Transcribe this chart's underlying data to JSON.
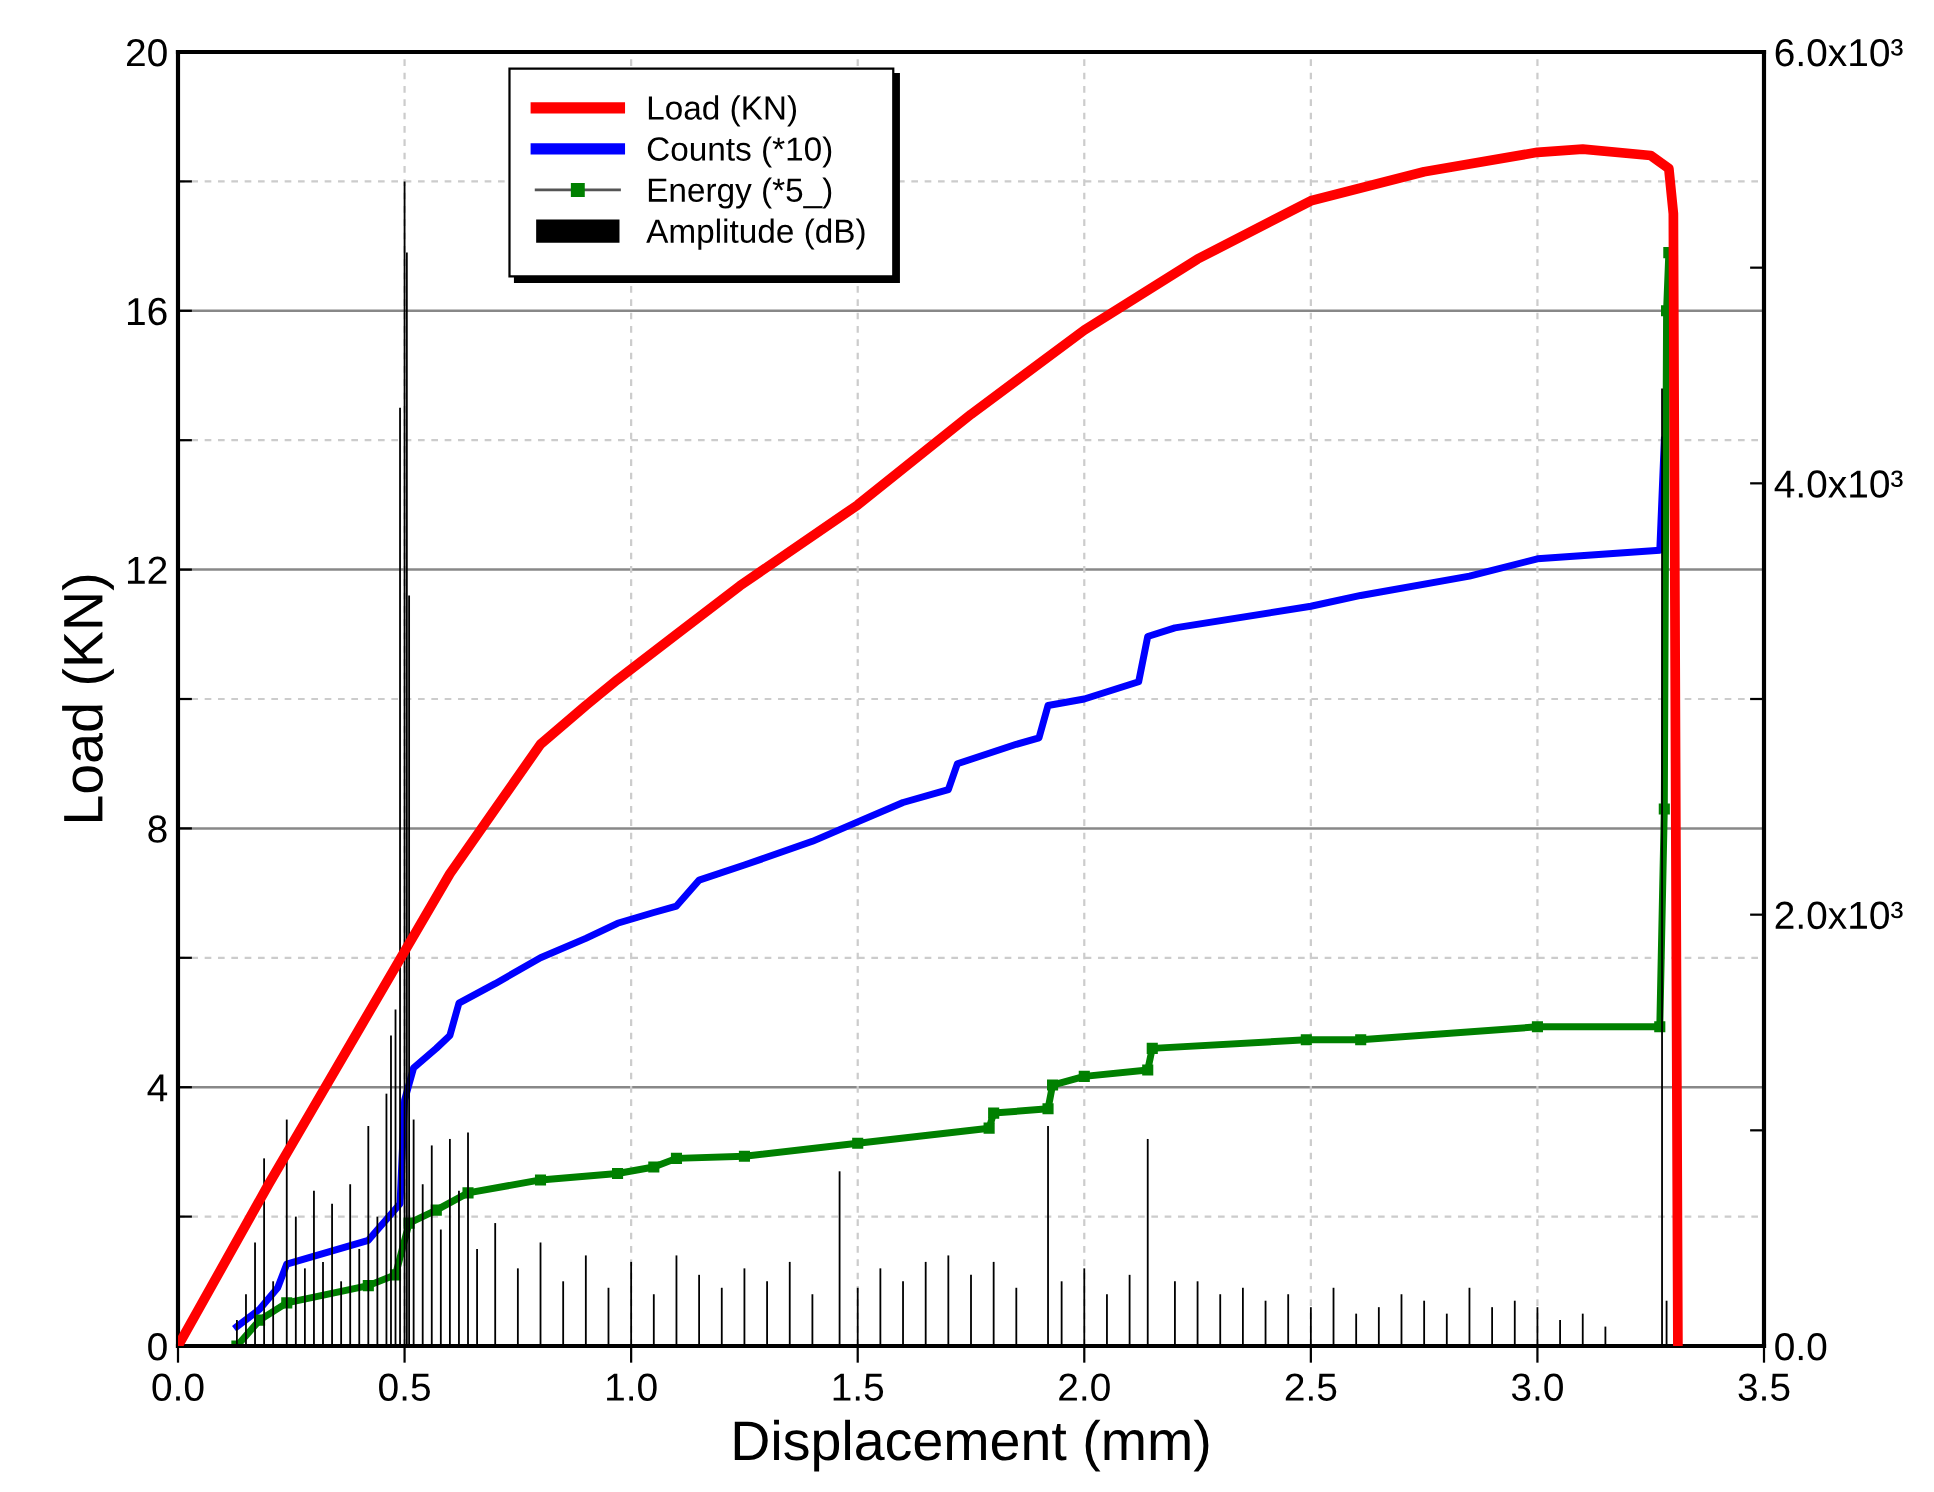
{
  "chart_data": {
    "type": "line",
    "xlabel": "Displacement (mm)",
    "ylabel": "Load (KN)",
    "xlim": [
      0,
      3.5
    ],
    "xticks": [
      {
        "value": 0,
        "label": "0.0"
      },
      {
        "value": 0.5,
        "label": "0.5"
      },
      {
        "value": 1,
        "label": "1.0"
      },
      {
        "value": 1.5,
        "label": "1.5"
      },
      {
        "value": 2,
        "label": "2.0"
      },
      {
        "value": 2.5,
        "label": "2.5"
      },
      {
        "value": 3,
        "label": "3.0"
      },
      {
        "value": 3.5,
        "label": "3.5"
      }
    ],
    "ylim": [
      0,
      20
    ],
    "yticks": [
      0,
      {
        "value": 2,
        "label": null
      },
      4,
      {
        "value": 6,
        "label": null
      },
      8,
      {
        "value": 10,
        "label": null
      },
      12,
      {
        "value": 14,
        "label": null
      },
      16,
      {
        "value": 18,
        "label": null
      },
      20
    ],
    "y2lim": [
      0,
      6000
    ],
    "y2ticks": [
      {
        "value": 0,
        "label": "0.0"
      },
      {
        "value": 1000,
        "label": null
      },
      {
        "value": 2000,
        "label": "2.0x10³"
      },
      {
        "value": 3000,
        "label": null
      },
      {
        "value": 4000,
        "label": "4.0x10³"
      },
      {
        "value": 5000,
        "label": null
      },
      {
        "value": 6000,
        "label": "6.0x10³"
      }
    ],
    "grid": true,
    "legend": "top",
    "series": [
      {
        "name": "Load (KN)",
        "color": "#ff0000",
        "marker": "none",
        "x": [
          0,
          0.1,
          0.2,
          0.3,
          0.4,
          0.5,
          0.6,
          0.7,
          0.8,
          0.9,
          0.97,
          1.1,
          1.24,
          1.5,
          1.75,
          2.0,
          2.25,
          2.5,
          2.75,
          3.0,
          3.1,
          3.25,
          3.29,
          3.3,
          3.31
        ],
        "values": [
          0,
          1.25,
          2.5,
          3.7,
          4.9,
          6.1,
          7.3,
          8.3,
          9.3,
          9.9,
          10.3,
          11.0,
          11.75,
          13.0,
          14.4,
          15.7,
          16.8,
          17.7,
          18.15,
          18.45,
          18.5,
          18.4,
          18.2,
          17.5,
          0
        ]
      },
      {
        "name": "Counts (*10)",
        "color": "#0000ff",
        "axis": "y2",
        "marker": "none",
        "x": [
          0.13,
          0.18,
          0.22,
          0.24,
          0.42,
          0.49,
          0.5,
          0.52,
          0.57,
          0.6,
          0.62,
          0.7,
          0.8,
          0.9,
          0.97,
          1.05,
          1.1,
          1.15,
          1.25,
          1.4,
          1.5,
          1.6,
          1.7,
          1.72,
          1.85,
          1.9,
          1.92,
          2.0,
          2.12,
          2.14,
          2.2,
          2.5,
          2.61,
          2.85,
          3.0,
          3.27,
          3.28
        ],
        "values": [
          90,
          170,
          270,
          380,
          490,
          660,
          1140,
          1290,
          1380,
          1440,
          1590,
          1680,
          1800,
          1890,
          1960,
          2010,
          2040,
          2160,
          2230,
          2340,
          2430,
          2520,
          2580,
          2700,
          2790,
          2820,
          2970,
          3000,
          3080,
          3290,
          3330,
          3430,
          3480,
          3570,
          3650,
          3690,
          4200
        ]
      },
      {
        "name": "Energy (*5_)",
        "color": "#008000",
        "axis": "y2",
        "marker": "square",
        "x": [
          0.13,
          0.18,
          0.24,
          0.42,
          0.48,
          0.51,
          0.57,
          0.64,
          0.8,
          0.97,
          1.05,
          1.1,
          1.25,
          1.5,
          1.79,
          1.8,
          1.92,
          1.93,
          2.0,
          2.14,
          2.15,
          2.49,
          2.61,
          3.0,
          3.27,
          3.28,
          3.285,
          3.29
        ],
        "values": [
          0,
          120,
          200,
          280,
          330,
          570,
          630,
          710,
          770,
          800,
          830,
          870,
          880,
          940,
          1010,
          1080,
          1100,
          1210,
          1250,
          1280,
          1380,
          1420,
          1420,
          1480,
          1480,
          2490,
          4800,
          5070
        ]
      },
      {
        "name": "Amplitude (dB)",
        "color": "#000000",
        "type": "bar",
        "axis": "y2",
        "x": [
          0.13,
          0.15,
          0.17,
          0.19,
          0.21,
          0.24,
          0.26,
          0.28,
          0.3,
          0.32,
          0.34,
          0.36,
          0.38,
          0.4,
          0.42,
          0.44,
          0.46,
          0.47,
          0.48,
          0.49,
          0.5,
          0.505,
          0.51,
          0.52,
          0.54,
          0.56,
          0.58,
          0.6,
          0.62,
          0.64,
          0.66,
          0.7,
          0.75,
          0.8,
          0.85,
          0.9,
          0.95,
          1.0,
          1.05,
          1.1,
          1.15,
          1.2,
          1.25,
          1.3,
          1.35,
          1.4,
          1.46,
          1.5,
          1.55,
          1.6,
          1.65,
          1.7,
          1.75,
          1.8,
          1.85,
          1.92,
          1.95,
          2.0,
          2.05,
          2.1,
          2.14,
          2.2,
          2.25,
          2.3,
          2.35,
          2.4,
          2.45,
          2.5,
          2.55,
          2.6,
          2.65,
          2.7,
          2.75,
          2.8,
          2.85,
          2.9,
          2.95,
          3.0,
          3.05,
          3.1,
          3.15,
          3.275,
          3.285
        ],
        "values": [
          120,
          240,
          480,
          870,
          300,
          1050,
          600,
          360,
          720,
          390,
          660,
          300,
          750,
          450,
          1020,
          600,
          1170,
          1440,
          1560,
          4350,
          5400,
          5070,
          3480,
          1050,
          750,
          930,
          540,
          960,
          720,
          990,
          450,
          570,
          360,
          480,
          300,
          420,
          270,
          390,
          240,
          420,
          330,
          270,
          360,
          300,
          390,
          240,
          810,
          270,
          360,
          300,
          390,
          420,
          330,
          390,
          270,
          1020,
          300,
          360,
          240,
          330,
          960,
          300,
          300,
          240,
          270,
          210,
          240,
          180,
          270,
          150,
          180,
          240,
          210,
          150,
          270,
          180,
          210,
          180,
          120,
          150,
          90,
          4440,
          210
        ]
      }
    ]
  }
}
